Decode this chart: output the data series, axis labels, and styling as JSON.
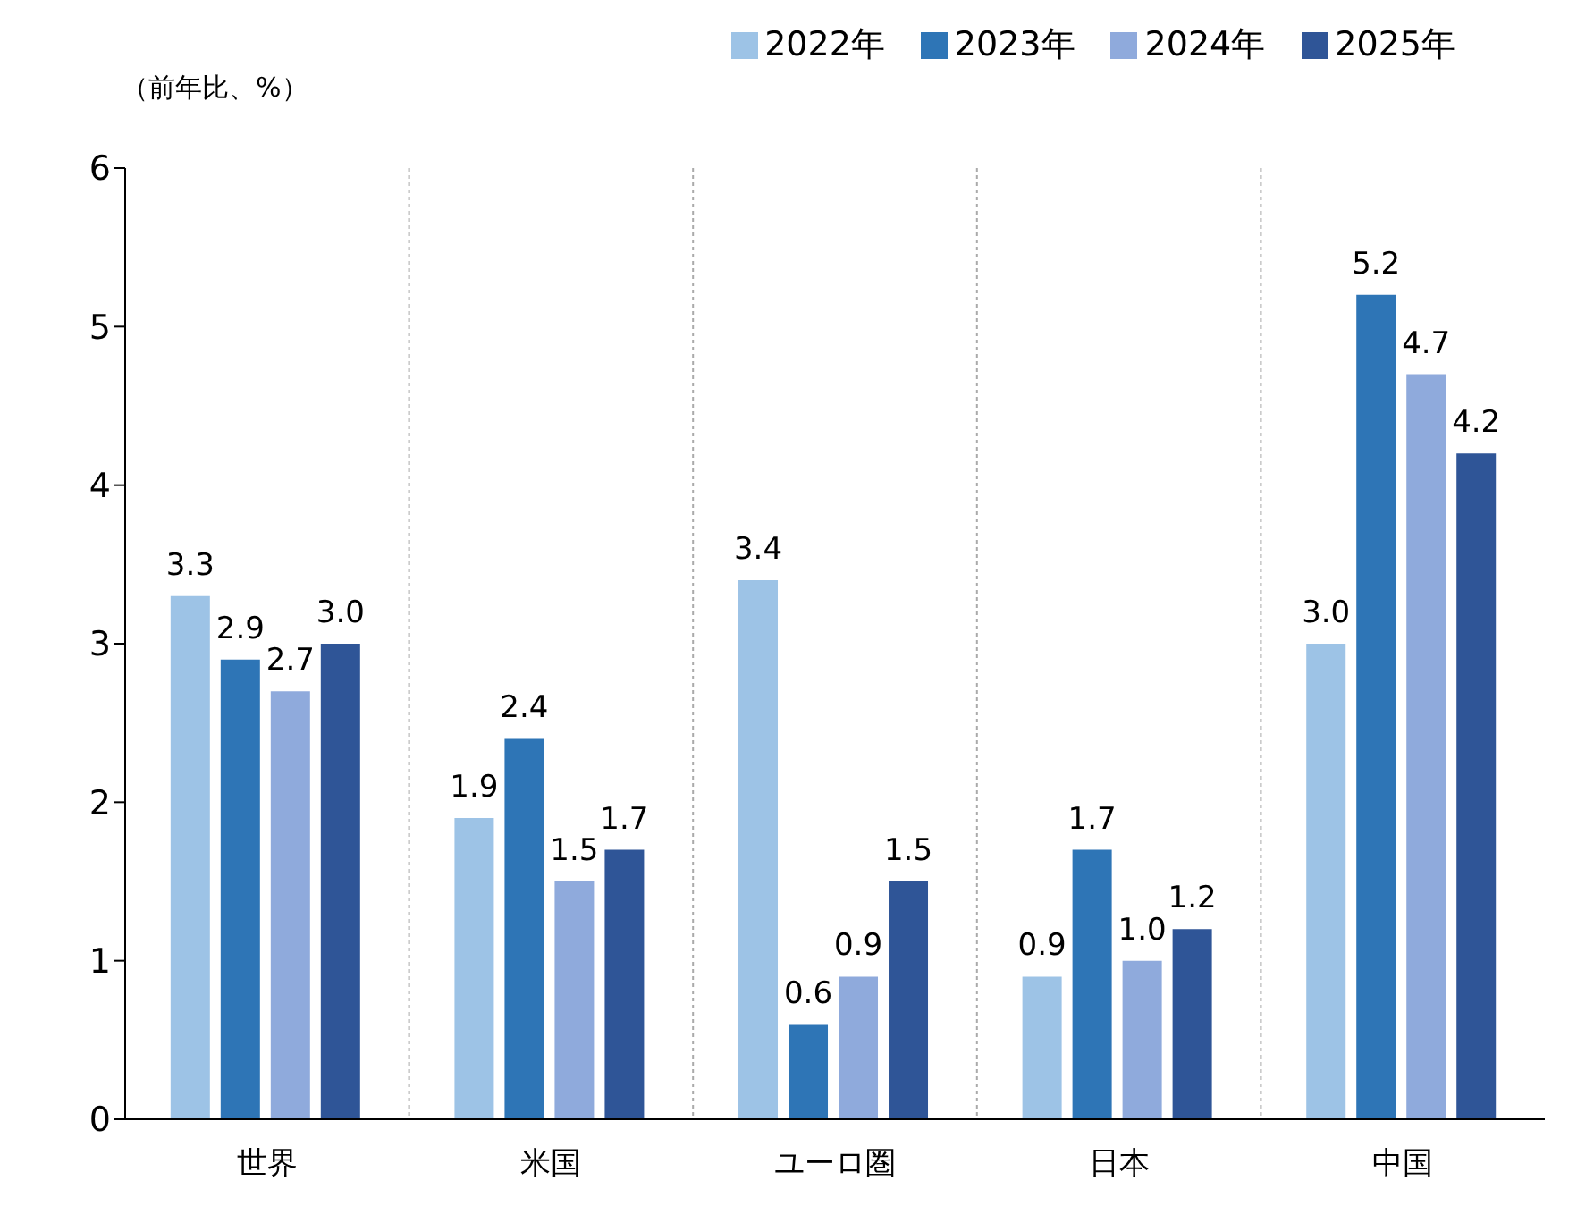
{
  "chart_data": {
    "type": "bar",
    "ylabel": "（前年比、%）",
    "categories": [
      "世界",
      "米国",
      "ユーロ圏",
      "日本",
      "中国"
    ],
    "series": [
      {
        "name": "2022年",
        "color": "#9dc3e6",
        "values": [
          3.3,
          1.9,
          3.4,
          0.9,
          3.0
        ],
        "value_labels": [
          "3.3",
          "1.9",
          "3.4",
          "0.9",
          "3.0"
        ]
      },
      {
        "name": "2023年",
        "color": "#2e75b6",
        "values": [
          2.9,
          2.4,
          0.6,
          1.7,
          5.2
        ],
        "value_labels": [
          "2.9",
          "2.4",
          "0.6",
          "1.7",
          "5.2"
        ]
      },
      {
        "name": "2024年",
        "color": "#8faadc",
        "values": [
          2.7,
          1.5,
          0.9,
          1.0,
          4.7
        ],
        "value_labels": [
          "2.7",
          "1.5",
          "0.9",
          "1.0",
          "4.7"
        ]
      },
      {
        "name": "2025年",
        "color": "#2f5597",
        "values": [
          3.0,
          1.7,
          1.5,
          1.2,
          4.2
        ],
        "value_labels": [
          "3.0",
          "1.7",
          "1.5",
          "1.2",
          "4.2"
        ]
      }
    ],
    "ylim": [
      0,
      6
    ],
    "yticks": [
      0,
      1,
      2,
      3,
      4,
      5,
      6
    ],
    "grid": "x",
    "legend": "top"
  }
}
